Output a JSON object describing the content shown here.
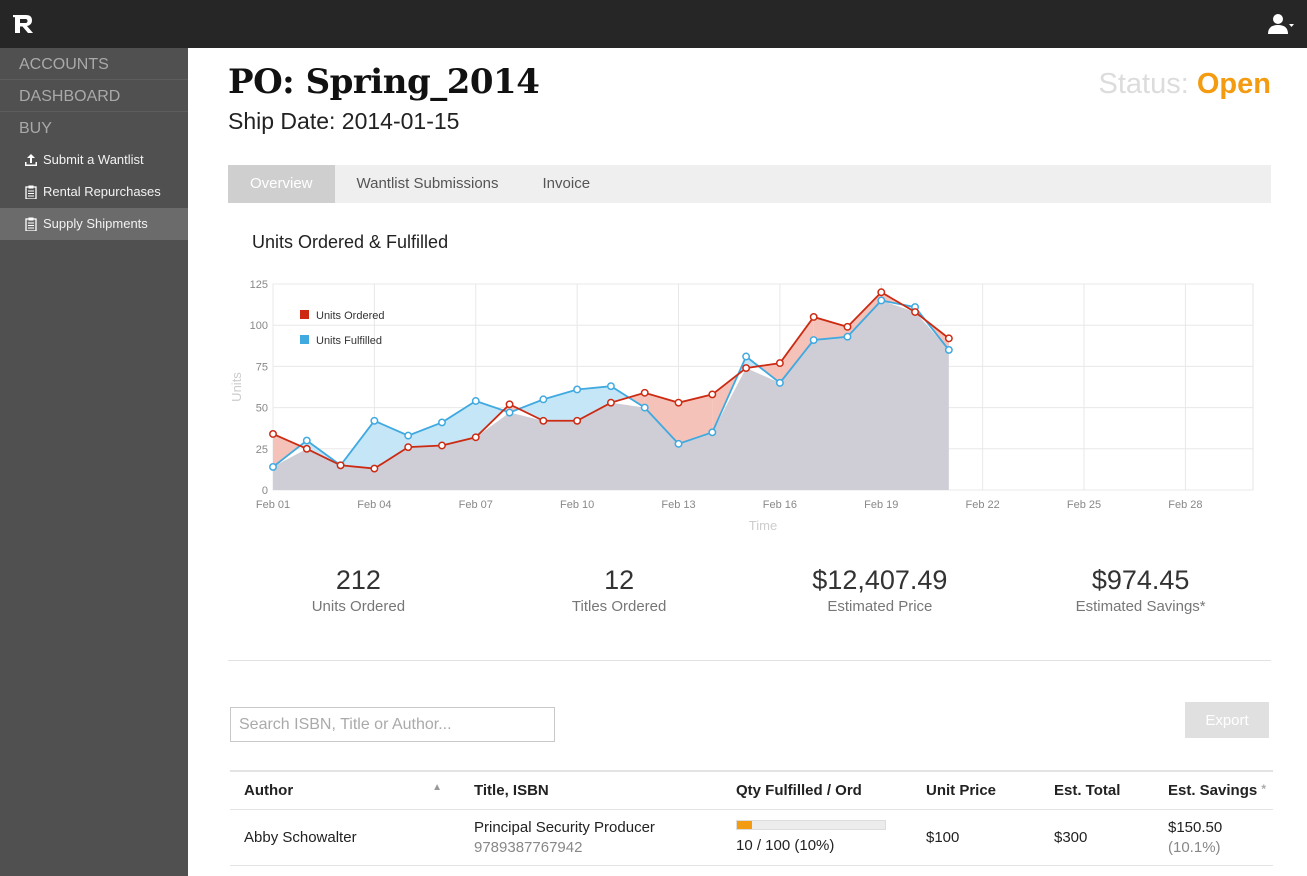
{
  "topbar": {
    "logo_icon": "rx-logo-icon",
    "user_icon": "user-icon"
  },
  "sidebar": {
    "sections": [
      "ACCOUNTS",
      "DASHBOARD",
      "BUY"
    ],
    "items": [
      {
        "label": "Submit a Wantlist",
        "icon": "upload-icon"
      },
      {
        "label": "Rental Repurchases",
        "icon": "clipboard-icon"
      },
      {
        "label": "Supply Shipments",
        "icon": "clipboard-icon",
        "active": true
      }
    ]
  },
  "header": {
    "title": "PO: Spring_2014",
    "ship_date": "Ship Date: 2014-01-15",
    "status_label": "Status:",
    "status_value": "Open",
    "status_color": "#f39c12"
  },
  "tabs": [
    "Overview",
    "Wantlist Submissions",
    "Invoice"
  ],
  "chart_data": {
    "type": "area",
    "title": "Units Ordered & Fulfilled",
    "xlabel": "Time",
    "ylabel": "Units",
    "ylim": [
      0,
      125
    ],
    "yticks": [
      0,
      25,
      50,
      75,
      100,
      125
    ],
    "xticks": [
      "Feb 01",
      "Feb 04",
      "Feb 07",
      "Feb 10",
      "Feb 13",
      "Feb 16",
      "Feb 19",
      "Feb 22",
      "Feb 25",
      "Feb 28"
    ],
    "x_day_range": [
      1,
      30
    ],
    "x_days": [
      1,
      2,
      3,
      4,
      5,
      6,
      7,
      8,
      9,
      10,
      11,
      12,
      13,
      14,
      15,
      16,
      17,
      18,
      19,
      20,
      21
    ],
    "legend_position": "top-left",
    "series": [
      {
        "name": "Units Ordered",
        "color": "#cc2a12",
        "values": [
          34,
          25,
          15,
          13,
          26,
          27,
          32,
          52,
          42,
          42,
          53,
          59,
          53,
          58,
          74,
          77,
          105,
          99,
          120,
          108,
          92
        ]
      },
      {
        "name": "Units Fulfilled",
        "color": "#3fa9e0",
        "values": [
          14,
          30,
          15,
          42,
          33,
          41,
          54,
          47,
          55,
          61,
          63,
          50,
          28,
          35,
          81,
          65,
          91,
          93,
          115,
          111,
          85
        ]
      }
    ]
  },
  "stats": [
    {
      "value": "212",
      "label": "Units Ordered"
    },
    {
      "value": "12",
      "label": "Titles Ordered"
    },
    {
      "value": "$12,407.49",
      "label": "Estimated Price"
    },
    {
      "value": "$974.45",
      "label": "Estimated Savings*"
    }
  ],
  "search": {
    "placeholder": "Search ISBN, Title or Author..."
  },
  "export_label": "Export",
  "table": {
    "headers": [
      "Author",
      "Title, ISBN",
      "Qty Fulfilled / Ord",
      "Unit Price",
      "Est. Total",
      "Est. Savings"
    ],
    "rows": [
      {
        "author": "Abby Schowalter",
        "title": "Principal Security Producer",
        "isbn": "9789387767942",
        "qty_text": "10 / 100 (10%)",
        "qty_fraction": 0.1,
        "unit_price": "$100",
        "est_total": "$300",
        "savings": "$150.50",
        "savings_pct": "(10.1%)"
      }
    ]
  }
}
